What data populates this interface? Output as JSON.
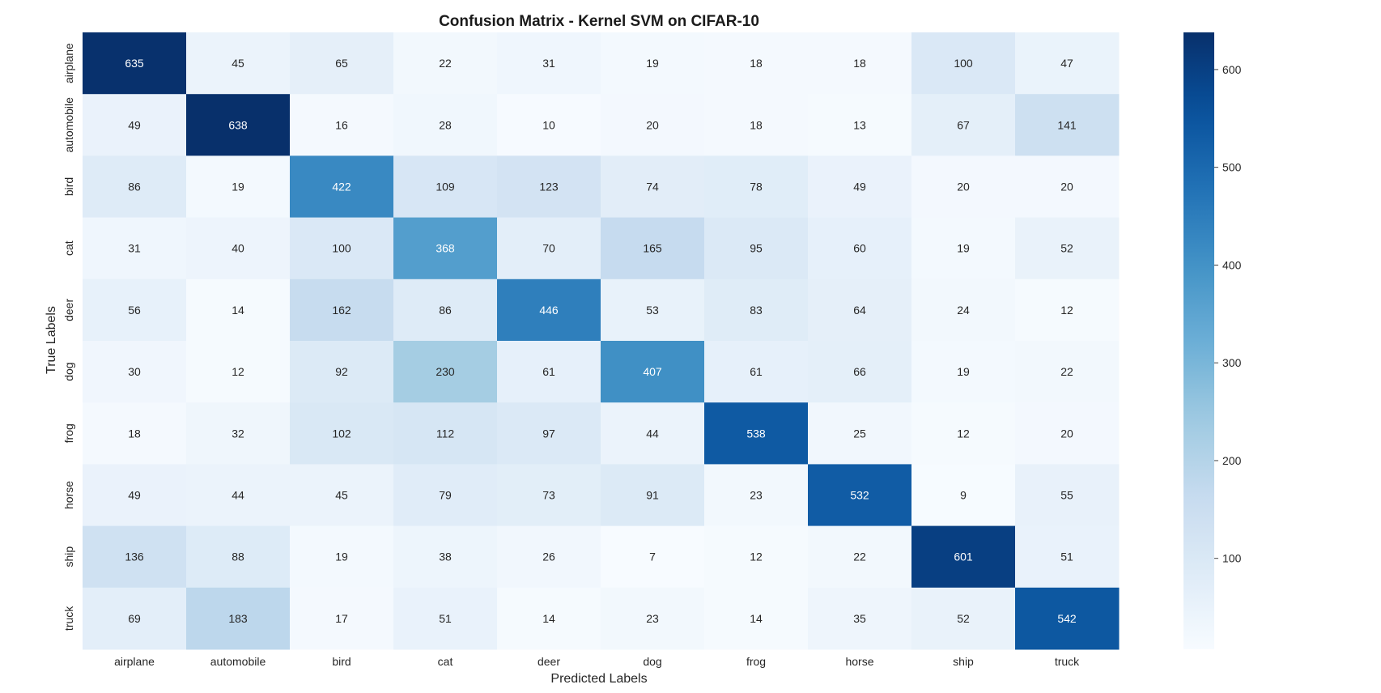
{
  "chart_data": {
    "type": "heatmap",
    "title": "Confusion Matrix - Kernel SVM on CIFAR-10",
    "xlabel": "Predicted Labels",
    "ylabel": "True Labels",
    "x_categories": [
      "airplane",
      "automobile",
      "bird",
      "cat",
      "deer",
      "dog",
      "frog",
      "horse",
      "ship",
      "truck"
    ],
    "y_categories": [
      "airplane",
      "automobile",
      "bird",
      "cat",
      "deer",
      "dog",
      "frog",
      "horse",
      "ship",
      "truck"
    ],
    "values": [
      [
        635,
        45,
        65,
        22,
        31,
        19,
        18,
        18,
        100,
        47
      ],
      [
        49,
        638,
        16,
        28,
        10,
        20,
        18,
        13,
        67,
        141
      ],
      [
        86,
        19,
        422,
        109,
        123,
        74,
        78,
        49,
        20,
        20
      ],
      [
        31,
        40,
        100,
        368,
        70,
        165,
        95,
        60,
        19,
        52
      ],
      [
        56,
        14,
        162,
        86,
        446,
        53,
        83,
        64,
        24,
        12
      ],
      [
        30,
        12,
        92,
        230,
        61,
        407,
        61,
        66,
        19,
        22
      ],
      [
        18,
        32,
        102,
        112,
        97,
        44,
        538,
        25,
        12,
        20
      ],
      [
        49,
        44,
        45,
        79,
        73,
        91,
        23,
        532,
        9,
        55
      ],
      [
        136,
        88,
        19,
        38,
        26,
        7,
        12,
        22,
        601,
        51
      ],
      [
        69,
        183,
        17,
        51,
        14,
        23,
        14,
        35,
        52,
        542
      ]
    ],
    "colormap": "Blues",
    "color_range": [
      7,
      638
    ],
    "colorbar_ticks": [
      100,
      200,
      300,
      400,
      500,
      600
    ],
    "annotated": true,
    "grid": false,
    "legend": "colorbar-right"
  }
}
